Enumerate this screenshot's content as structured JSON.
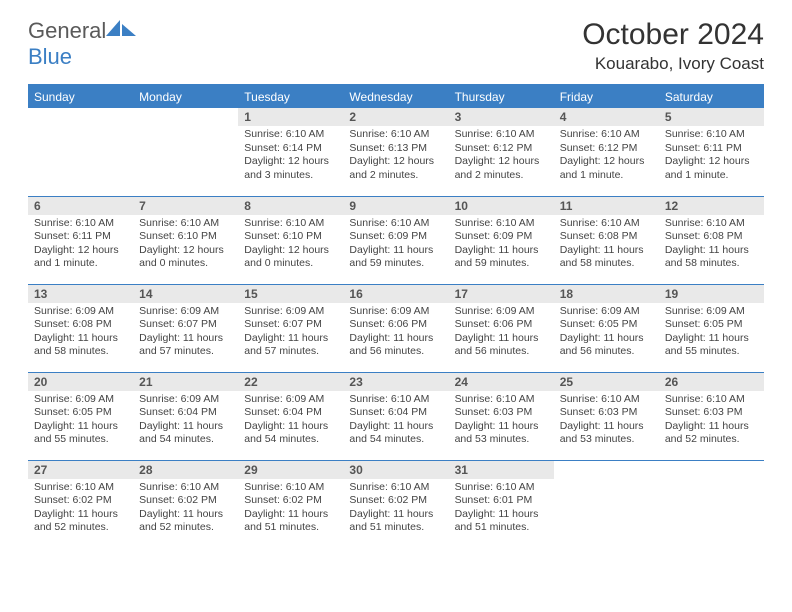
{
  "logo": {
    "text1": "General",
    "text2": "Blue"
  },
  "title": "October 2024",
  "location": "Kouarabo, Ivory Coast",
  "colors": {
    "header_bg": "#3b7fc4",
    "header_text": "#ffffff",
    "daynum_bg": "#e9e9e9",
    "rule": "#3b7fc4",
    "text": "#333333"
  },
  "typography": {
    "title_fontsize": 30,
    "location_fontsize": 17,
    "dayheader_fontsize": 12,
    "daynum_fontsize": 12,
    "detail_fontsize": 10.5
  },
  "day_headers": [
    "Sunday",
    "Monday",
    "Tuesday",
    "Wednesday",
    "Thursday",
    "Friday",
    "Saturday"
  ],
  "weeks": [
    [
      {
        "n": "",
        "sr": "",
        "ss": "",
        "dl": ""
      },
      {
        "n": "",
        "sr": "",
        "ss": "",
        "dl": ""
      },
      {
        "n": "1",
        "sr": "Sunrise: 6:10 AM",
        "ss": "Sunset: 6:14 PM",
        "dl": "Daylight: 12 hours and 3 minutes."
      },
      {
        "n": "2",
        "sr": "Sunrise: 6:10 AM",
        "ss": "Sunset: 6:13 PM",
        "dl": "Daylight: 12 hours and 2 minutes."
      },
      {
        "n": "3",
        "sr": "Sunrise: 6:10 AM",
        "ss": "Sunset: 6:12 PM",
        "dl": "Daylight: 12 hours and 2 minutes."
      },
      {
        "n": "4",
        "sr": "Sunrise: 6:10 AM",
        "ss": "Sunset: 6:12 PM",
        "dl": "Daylight: 12 hours and 1 minute."
      },
      {
        "n": "5",
        "sr": "Sunrise: 6:10 AM",
        "ss": "Sunset: 6:11 PM",
        "dl": "Daylight: 12 hours and 1 minute."
      }
    ],
    [
      {
        "n": "6",
        "sr": "Sunrise: 6:10 AM",
        "ss": "Sunset: 6:11 PM",
        "dl": "Daylight: 12 hours and 1 minute."
      },
      {
        "n": "7",
        "sr": "Sunrise: 6:10 AM",
        "ss": "Sunset: 6:10 PM",
        "dl": "Daylight: 12 hours and 0 minutes."
      },
      {
        "n": "8",
        "sr": "Sunrise: 6:10 AM",
        "ss": "Sunset: 6:10 PM",
        "dl": "Daylight: 12 hours and 0 minutes."
      },
      {
        "n": "9",
        "sr": "Sunrise: 6:10 AM",
        "ss": "Sunset: 6:09 PM",
        "dl": "Daylight: 11 hours and 59 minutes."
      },
      {
        "n": "10",
        "sr": "Sunrise: 6:10 AM",
        "ss": "Sunset: 6:09 PM",
        "dl": "Daylight: 11 hours and 59 minutes."
      },
      {
        "n": "11",
        "sr": "Sunrise: 6:10 AM",
        "ss": "Sunset: 6:08 PM",
        "dl": "Daylight: 11 hours and 58 minutes."
      },
      {
        "n": "12",
        "sr": "Sunrise: 6:10 AM",
        "ss": "Sunset: 6:08 PM",
        "dl": "Daylight: 11 hours and 58 minutes."
      }
    ],
    [
      {
        "n": "13",
        "sr": "Sunrise: 6:09 AM",
        "ss": "Sunset: 6:08 PM",
        "dl": "Daylight: 11 hours and 58 minutes."
      },
      {
        "n": "14",
        "sr": "Sunrise: 6:09 AM",
        "ss": "Sunset: 6:07 PM",
        "dl": "Daylight: 11 hours and 57 minutes."
      },
      {
        "n": "15",
        "sr": "Sunrise: 6:09 AM",
        "ss": "Sunset: 6:07 PM",
        "dl": "Daylight: 11 hours and 57 minutes."
      },
      {
        "n": "16",
        "sr": "Sunrise: 6:09 AM",
        "ss": "Sunset: 6:06 PM",
        "dl": "Daylight: 11 hours and 56 minutes."
      },
      {
        "n": "17",
        "sr": "Sunrise: 6:09 AM",
        "ss": "Sunset: 6:06 PM",
        "dl": "Daylight: 11 hours and 56 minutes."
      },
      {
        "n": "18",
        "sr": "Sunrise: 6:09 AM",
        "ss": "Sunset: 6:05 PM",
        "dl": "Daylight: 11 hours and 56 minutes."
      },
      {
        "n": "19",
        "sr": "Sunrise: 6:09 AM",
        "ss": "Sunset: 6:05 PM",
        "dl": "Daylight: 11 hours and 55 minutes."
      }
    ],
    [
      {
        "n": "20",
        "sr": "Sunrise: 6:09 AM",
        "ss": "Sunset: 6:05 PM",
        "dl": "Daylight: 11 hours and 55 minutes."
      },
      {
        "n": "21",
        "sr": "Sunrise: 6:09 AM",
        "ss": "Sunset: 6:04 PM",
        "dl": "Daylight: 11 hours and 54 minutes."
      },
      {
        "n": "22",
        "sr": "Sunrise: 6:09 AM",
        "ss": "Sunset: 6:04 PM",
        "dl": "Daylight: 11 hours and 54 minutes."
      },
      {
        "n": "23",
        "sr": "Sunrise: 6:10 AM",
        "ss": "Sunset: 6:04 PM",
        "dl": "Daylight: 11 hours and 54 minutes."
      },
      {
        "n": "24",
        "sr": "Sunrise: 6:10 AM",
        "ss": "Sunset: 6:03 PM",
        "dl": "Daylight: 11 hours and 53 minutes."
      },
      {
        "n": "25",
        "sr": "Sunrise: 6:10 AM",
        "ss": "Sunset: 6:03 PM",
        "dl": "Daylight: 11 hours and 53 minutes."
      },
      {
        "n": "26",
        "sr": "Sunrise: 6:10 AM",
        "ss": "Sunset: 6:03 PM",
        "dl": "Daylight: 11 hours and 52 minutes."
      }
    ],
    [
      {
        "n": "27",
        "sr": "Sunrise: 6:10 AM",
        "ss": "Sunset: 6:02 PM",
        "dl": "Daylight: 11 hours and 52 minutes."
      },
      {
        "n": "28",
        "sr": "Sunrise: 6:10 AM",
        "ss": "Sunset: 6:02 PM",
        "dl": "Daylight: 11 hours and 52 minutes."
      },
      {
        "n": "29",
        "sr": "Sunrise: 6:10 AM",
        "ss": "Sunset: 6:02 PM",
        "dl": "Daylight: 11 hours and 51 minutes."
      },
      {
        "n": "30",
        "sr": "Sunrise: 6:10 AM",
        "ss": "Sunset: 6:02 PM",
        "dl": "Daylight: 11 hours and 51 minutes."
      },
      {
        "n": "31",
        "sr": "Sunrise: 6:10 AM",
        "ss": "Sunset: 6:01 PM",
        "dl": "Daylight: 11 hours and 51 minutes."
      },
      {
        "n": "",
        "sr": "",
        "ss": "",
        "dl": ""
      },
      {
        "n": "",
        "sr": "",
        "ss": "",
        "dl": ""
      }
    ]
  ]
}
